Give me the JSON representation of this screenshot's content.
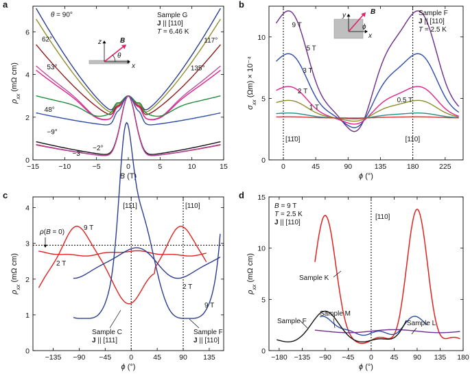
{
  "chart_data": [
    {
      "id": "a",
      "panel_label": "a",
      "type": "line",
      "xlabel": "B (T)",
      "ylabel_parts": {
        "sym": "ρ",
        "sub": "xx",
        "unit": " (mΩ cm)"
      },
      "xlim": [
        -15,
        15
      ],
      "ylim": [
        0,
        7.2
      ],
      "xticks": [
        -15,
        -10,
        -5,
        0,
        5,
        10,
        15
      ],
      "yticks": [
        0,
        2,
        4,
        6
      ],
      "info": [
        "Sample G",
        "J || [110]",
        "T = 6.46 K"
      ],
      "inset": {
        "field": "B",
        "z": "z",
        "x": "x",
        "angle": "θ"
      },
      "series": [
        {
          "name": "θ = 90°",
          "color": "#2a3b8f",
          "peak": 7.1,
          "shoulder": 2.2
        },
        {
          "name": "117°",
          "color": "#8c8c2a",
          "peak": 6.6,
          "shoulder": 2.1
        },
        {
          "name": "62°",
          "color": "#8b1a1a",
          "peak": 5.4,
          "shoulder": 2.0
        },
        {
          "name": "53°",
          "color": "#c04aa0",
          "peak": 4.4,
          "shoulder": 2.0
        },
        {
          "name": "135°",
          "color": "#e0208a",
          "peak": 4.2,
          "shoulder": 2.0
        },
        {
          "name": "",
          "color": "#1e8a3a",
          "peak": 3.0,
          "shoulder": 2.3
        },
        {
          "name": "48°",
          "color": "#2a4aa8",
          "peak": 2.2,
          "shoulder": 1.6
        },
        {
          "name": "−9°",
          "color": "#111111",
          "peak": 0.85,
          "shoulder": 0.2
        },
        {
          "name": "−2°",
          "color": "#d03030",
          "peak": 0.7,
          "shoulder": 0.15
        },
        {
          "name": "−3°",
          "color": "#b040a0",
          "peak": 0.72,
          "shoulder": 0.15
        }
      ]
    },
    {
      "id": "b",
      "panel_label": "b",
      "type": "line",
      "xlabel": "ϕ (°)",
      "ylabel_parts": {
        "sym": "σ",
        "sub": "xx",
        "unit": " (Ωm) × 10⁻⁴"
      },
      "xlim": [
        -20,
        250
      ],
      "ylim": [
        0,
        12.5
      ],
      "xticks": [
        0,
        45,
        90,
        135,
        180,
        225
      ],
      "yticks": [
        0,
        5,
        10
      ],
      "vlines": [
        0,
        180
      ],
      "vline_labels": [
        "[11̄0]",
        "[110]"
      ],
      "info": [
        "Sample F",
        "J || [110]",
        "T = 2.5 K"
      ],
      "inset": {
        "field": "B",
        "y": "y",
        "x": "x",
        "angle": "ϕ"
      },
      "series": [
        {
          "name": "9 T",
          "color": "#6b2a8a",
          "max": 11.9,
          "min": 2.6
        },
        {
          "name": "5 T",
          "color": "#2a4aa8",
          "max": 8.5,
          "min": 2.8
        },
        {
          "name": "3 T",
          "color": "#e0208a",
          "max": 5.9,
          "min": 3.0
        },
        {
          "name": "2 T",
          "color": "#8c8c2a",
          "max": 4.8,
          "min": 3.2
        },
        {
          "name": "1 T",
          "color": "#1e8a8a",
          "max": 3.8,
          "min": 3.35
        },
        {
          "name": "0.5 T",
          "color": "#d03030",
          "max": 3.5,
          "min": 3.4
        }
      ]
    },
    {
      "id": "c",
      "panel_label": "c",
      "type": "line",
      "xlabel": "ϕ (°)",
      "ylabel_parts": {
        "sym": "ρ",
        "sub": "xx",
        "unit": " (mΩ cm)"
      },
      "xlim": [
        -170,
        160
      ],
      "ylim": [
        0,
        4.3
      ],
      "xticks": [
        -135,
        -90,
        -45,
        0,
        45,
        90,
        135
      ],
      "yticks": [
        0,
        1,
        2,
        3,
        4
      ],
      "vlines": [
        0,
        90
      ],
      "vline_labels": [
        "[111]",
        "[110]"
      ],
      "hline": 2.95,
      "hline_label": "ρ(B = 0)",
      "series": [
        {
          "name": "Sample C 9 T",
          "color": "#e02020"
        },
        {
          "name": "Sample C 2 T",
          "color": "#e02020"
        },
        {
          "name": "Sample F 9 T",
          "color": "#2a3b8f"
        },
        {
          "name": "Sample F 2 T",
          "color": "#2a3b8f"
        }
      ],
      "labels": {
        "c9": "9 T",
        "c2": "2 T",
        "f2": "2 T",
        "f9": "9 T",
        "sampleC": "Sample C",
        "jC": "J || [111]",
        "sampleF": "Sample F",
        "jF": "J || [110]"
      }
    },
    {
      "id": "d",
      "panel_label": "d",
      "type": "line",
      "xlabel": "ϕ (°)",
      "ylabel_parts": {
        "sym": "ρ",
        "sub": "xx",
        "unit": " (mΩ cm)"
      },
      "xlim": [
        -200,
        180
      ],
      "ylim": [
        0,
        15
      ],
      "xticks": [
        -180,
        -135,
        -90,
        -45,
        0,
        45,
        90,
        135,
        180
      ],
      "yticks": [
        0,
        5,
        10,
        15
      ],
      "vlines": [
        0
      ],
      "vline_labels": [
        "[110]"
      ],
      "info": [
        "B = 9 T",
        "T = 2.5 K",
        "J || [110]"
      ],
      "series": [
        {
          "name": "Sample K",
          "color": "#e02020"
        },
        {
          "name": "Sample M",
          "color": "#2a4aa8"
        },
        {
          "name": "Sample L",
          "color": "#6b2a8a"
        },
        {
          "name": "Sample F",
          "color": "#111111"
        }
      ]
    }
  ]
}
